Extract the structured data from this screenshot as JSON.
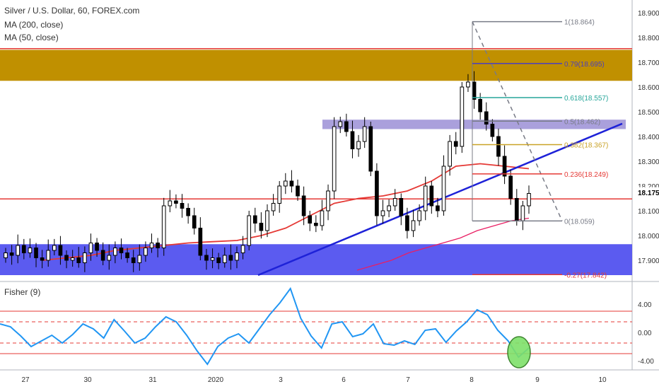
{
  "legend": {
    "symbol_line": "Silver / U.S. Dollar, 60, FOREX.com",
    "ma200_line": "MA (200, close)",
    "ma50_line": "MA (50, close)"
  },
  "indicator": {
    "title": "Fisher (9)",
    "yticks": [
      "4.00",
      "0.00",
      "-4.00"
    ]
  },
  "price_axis": {
    "ticks": [
      "18.900",
      "18.800",
      "18.700",
      "18.600",
      "18.500",
      "18.400",
      "18.300",
      "18.200",
      "18.100",
      "18.000",
      "17.900"
    ],
    "last_price": "18.175"
  },
  "time_axis": {
    "labels": [
      "27",
      "30",
      "31",
      "2020",
      "3",
      "6",
      "7",
      "8",
      "9",
      "10"
    ]
  },
  "fib_levels": [
    {
      "label": "1(18.864)",
      "value": 18.864,
      "color": "#787b86"
    },
    {
      "label": "0.79(18.695)",
      "value": 18.695,
      "color": "#4a3fbf"
    },
    {
      "label": "0.618(18.557)",
      "value": 18.557,
      "color": "#26a69a"
    },
    {
      "label": "0.5(18.462)",
      "value": 18.462,
      "color": "#787b86"
    },
    {
      "label": "0.382(18.367)",
      "value": 18.367,
      "color": "#c9a227"
    },
    {
      "label": "0.236(18.249)",
      "value": 18.249,
      "color": "#e53935"
    },
    {
      "label": "0(18.059)",
      "value": 18.059,
      "color": "#787b86"
    },
    {
      "label": "-0.27(17.842)",
      "value": 17.842,
      "color": "#e53935"
    }
  ],
  "colors": {
    "candle": "#000000",
    "ma200": "#e91e63",
    "ma50": "#e53935",
    "trendline": "#1e22d8",
    "fisher": "#2196f3",
    "resistance_zone": "#c09000",
    "support_zone": "#5b5bf0",
    "mid_zone": "#9b8fd6",
    "hline": "#e53935",
    "highlight": "#7ee06a"
  },
  "chart_data": {
    "type": "candlestick",
    "ylim": [
      17.84,
      18.94
    ],
    "zones": [
      {
        "name": "resistance",
        "from": 18.625,
        "to": 18.75
      },
      {
        "name": "mid",
        "from": 18.43,
        "to": 18.468
      },
      {
        "name": "support",
        "from": 17.84,
        "to": 17.965
      }
    ],
    "hlines": [
      18.755,
      18.148
    ],
    "close_path": [
      17.93,
      17.92,
      17.96,
      17.93,
      17.95,
      17.91,
      17.9,
      17.94,
      17.96,
      17.92,
      17.9,
      17.91,
      17.89,
      17.93,
      17.97,
      17.94,
      17.9,
      17.92,
      17.95,
      17.93,
      17.91,
      17.89,
      17.92,
      17.95,
      17.97,
      17.95,
      18.12,
      18.14,
      18.13,
      18.11,
      18.08,
      18.03,
      17.92,
      17.9,
      17.91,
      17.89,
      17.92,
      17.9,
      17.93,
      17.96,
      18.08,
      18.05,
      18.02,
      18.1,
      18.13,
      18.2,
      18.22,
      18.2,
      18.16,
      18.08,
      18.05,
      18.04,
      18.1,
      18.18,
      18.44,
      18.46,
      18.42,
      18.35,
      18.38,
      18.44,
      18.26,
      18.08,
      18.1,
      18.12,
      18.15,
      18.08,
      18.02,
      18.06,
      18.1,
      18.2,
      18.12,
      18.1,
      18.28,
      18.38,
      18.36,
      18.6,
      18.62,
      18.55,
      18.5,
      18.45,
      18.4,
      18.32,
      18.24,
      18.15,
      18.06,
      18.12,
      18.17
    ],
    "ma50": [
      17.9,
      17.91,
      17.92,
      17.94,
      17.95,
      17.96,
      17.97,
      17.975,
      17.98,
      18.0,
      18.03,
      18.08,
      18.13,
      18.15,
      18.16,
      18.18,
      18.22,
      18.28,
      18.29,
      18.28,
      18.27
    ],
    "ma200": [
      17.86,
      17.88,
      17.9,
      17.93,
      17.95,
      17.97,
      17.99,
      18.02,
      18.04,
      18.06,
      18.07
    ],
    "fisher_series": [
      1.2,
      0.8,
      -0.5,
      -2.0,
      -1.2,
      -0.4,
      -1.5,
      -0.3,
      1.2,
      0.5,
      -0.8,
      1.8,
      0.2,
      -1.5,
      -0.8,
      0.8,
      2.2,
      1.5,
      -0.4,
      -2.6,
      -4.5,
      -2.0,
      -0.8,
      -0.2,
      -1.5,
      0.5,
      2.5,
      4.2,
      6.2,
      2.0,
      -0.5,
      -2.2,
      1.2,
      1.5,
      -0.6,
      -0.2,
      1.2,
      -1.6,
      -1.8,
      -1.2,
      -1.7,
      0.3,
      0.5,
      -1.4,
      0.2,
      1.5,
      3.2,
      2.5,
      0.3,
      -1.2,
      -3.5,
      -2.2
    ],
    "fisher_levels": [
      3.0,
      1.5,
      -1.5,
      -3.0
    ]
  }
}
